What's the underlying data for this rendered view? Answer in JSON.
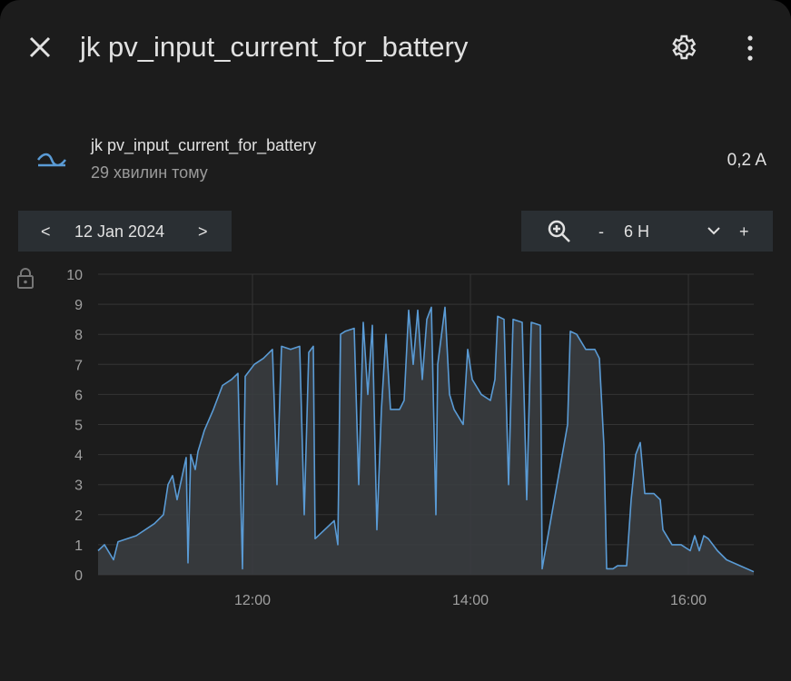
{
  "header": {
    "title": "jk pv_input_current_for_battery"
  },
  "entity": {
    "name": "jk pv_input_current_for_battery",
    "last_changed": "29 хвилин тому",
    "state": "0,2 A"
  },
  "date_nav": {
    "prev": "<",
    "date": "12 Jan 2024",
    "next": ">"
  },
  "zoom": {
    "minus": "-",
    "range": "6 H",
    "plus": "+"
  },
  "chart_data": {
    "type": "line",
    "color": "#5a9bd5",
    "area_color": "#3a3d40",
    "grid": true,
    "x": [
      635,
      638.5,
      643.5,
      646,
      656,
      666,
      671,
      673.5,
      676,
      678.5,
      683.5,
      684.5,
      686,
      688.5,
      690,
      693.5,
      698.5,
      703.5,
      708.5,
      712,
      714.5,
      716,
      721,
      726,
      731,
      733.5,
      736,
      741,
      746,
      748.5,
      751,
      753.5,
      754.5,
      765,
      767,
      768.5,
      771,
      776,
      778.5,
      781,
      783.5,
      786,
      788.5,
      791,
      793.5,
      796,
      801,
      803.5,
      806,
      808.5,
      811,
      813.5,
      816,
      818.5,
      821,
      822,
      826,
      828.5,
      831,
      836,
      838.5,
      841,
      846,
      851,
      853.5,
      855,
      858.5,
      861,
      863.5,
      868.5,
      871,
      873.5,
      878.5,
      879.5,
      893.5,
      895,
      898.5,
      903.5,
      908.5,
      911,
      913.5,
      915,
      918.5,
      921,
      926,
      928.5,
      931,
      933.5,
      936,
      941,
      944.5,
      946,
      951,
      956,
      961,
      963.5,
      966,
      968.5,
      971,
      976,
      981,
      988.5,
      996
    ],
    "values": [
      0.8,
      1.0,
      0.5,
      1.1,
      1.3,
      1.7,
      2.0,
      3.0,
      3.3,
      2.5,
      3.9,
      0.4,
      4.0,
      3.5,
      4.1,
      4.8,
      5.5,
      6.3,
      6.5,
      6.7,
      0.2,
      6.6,
      7.0,
      7.2,
      7.5,
      3.0,
      7.6,
      7.5,
      7.6,
      2.0,
      7.4,
      7.6,
      1.2,
      1.8,
      1.0,
      8.0,
      8.1,
      8.2,
      3.0,
      8.4,
      6.0,
      8.3,
      1.5,
      5.5,
      8.0,
      5.5,
      5.5,
      5.8,
      8.8,
      7.0,
      8.8,
      6.5,
      8.5,
      8.9,
      2.0,
      7.0,
      8.9,
      6.0,
      5.5,
      5.0,
      7.5,
      6.5,
      6.0,
      5.8,
      6.5,
      8.6,
      8.5,
      3.0,
      8.5,
      8.4,
      2.5,
      8.4,
      8.3,
      0.2,
      5.0,
      8.1,
      8.0,
      7.5,
      7.5,
      7.2,
      4.3,
      0.2,
      0.2,
      0.3,
      0.3,
      2.5,
      4.0,
      4.4,
      2.7,
      2.7,
      2.5,
      1.5,
      1.0,
      1.0,
      0.8,
      1.3,
      0.8,
      1.3,
      1.2,
      0.8,
      0.5,
      0.3,
      0.1
    ],
    "xlim": [
      635,
      996
    ],
    "xticks": [
      {
        "value": 720,
        "label": "12:00"
      },
      {
        "value": 840,
        "label": "14:00"
      },
      {
        "value": 960,
        "label": "16:00"
      }
    ],
    "ylim": [
      0,
      10
    ],
    "yticks": [
      0,
      1,
      2,
      3,
      4,
      5,
      6,
      7,
      8,
      9,
      10
    ]
  }
}
